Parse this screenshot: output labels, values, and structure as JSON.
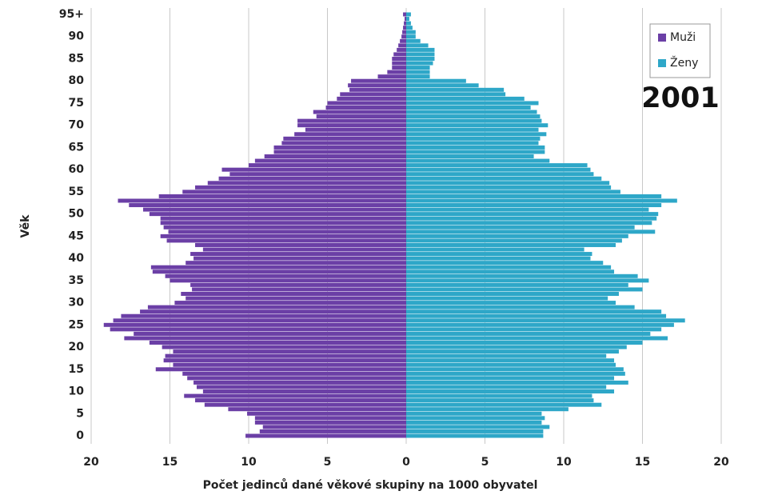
{
  "chart_data": {
    "type": "pyramid",
    "xlabel": "Počet jedinců dané věkové skupiny na 1000 obyvatel",
    "ylabel": "Věk",
    "annotation": "2001",
    "legend": "upper right",
    "grid": true,
    "xlim": [
      0,
      20
    ],
    "xticks": [
      0,
      5,
      10,
      15,
      20
    ],
    "categories": [
      "0",
      null,
      null,
      null,
      null,
      "5",
      null,
      null,
      null,
      null,
      "10",
      null,
      null,
      null,
      null,
      "15",
      null,
      null,
      null,
      null,
      "20",
      null,
      null,
      null,
      null,
      "25",
      null,
      null,
      null,
      null,
      "30",
      null,
      null,
      null,
      null,
      "35",
      null,
      null,
      null,
      null,
      "40",
      null,
      null,
      null,
      null,
      "45",
      null,
      null,
      null,
      null,
      "50",
      null,
      null,
      null,
      null,
      "55",
      null,
      null,
      null,
      null,
      "60",
      null,
      null,
      null,
      null,
      "65",
      null,
      null,
      null,
      null,
      "70",
      null,
      null,
      null,
      null,
      "75",
      null,
      null,
      null,
      null,
      "80",
      null,
      null,
      null,
      null,
      "85",
      null,
      null,
      null,
      null,
      "90",
      null,
      null,
      null,
      null,
      "95+"
    ],
    "series": [
      {
        "name": "Muži",
        "color": "#6b3fa6",
        "side": "left",
        "values": [
          10.2,
          9.3,
          9.1,
          9.6,
          9.6,
          10.1,
          11.3,
          12.8,
          13.4,
          14.1,
          12.9,
          13.3,
          13.5,
          13.9,
          14.2,
          15.9,
          14.8,
          15.4,
          15.3,
          14.8,
          15.5,
          16.3,
          17.9,
          17.3,
          18.8,
          19.2,
          18.6,
          18.1,
          16.9,
          16.4,
          14.7,
          14.0,
          14.3,
          13.6,
          13.7,
          15.0,
          15.3,
          16.1,
          16.2,
          14.0,
          13.5,
          13.7,
          12.9,
          13.4,
          15.2,
          15.6,
          15.1,
          15.4,
          15.6,
          15.6,
          16.3,
          16.7,
          17.6,
          18.3,
          15.7,
          14.2,
          13.4,
          12.6,
          11.9,
          11.2,
          11.7,
          10.0,
          9.6,
          9.0,
          8.4,
          8.4,
          7.9,
          7.8,
          7.1,
          6.4,
          6.9,
          6.9,
          5.7,
          5.9,
          5.1,
          5.0,
          4.4,
          4.2,
          3.6,
          3.7,
          3.5,
          1.8,
          1.2,
          0.9,
          0.9,
          0.9,
          0.8,
          0.6,
          0.5,
          0.4,
          0.3,
          0.25,
          0.2,
          0.15,
          0.1,
          0.2
        ]
      },
      {
        "name": "Ženy",
        "color": "#2ea7c8",
        "side": "right",
        "values": [
          8.7,
          8.7,
          9.1,
          8.6,
          8.8,
          8.6,
          10.3,
          12.4,
          11.9,
          11.8,
          13.2,
          12.7,
          14.1,
          13.2,
          13.9,
          13.8,
          13.3,
          13.2,
          12.7,
          13.5,
          14.0,
          15.0,
          16.6,
          15.5,
          16.2,
          17.0,
          17.7,
          16.5,
          16.2,
          14.5,
          13.3,
          12.8,
          13.5,
          15.0,
          14.1,
          15.4,
          14.7,
          13.2,
          13.0,
          12.5,
          11.7,
          11.8,
          11.3,
          13.3,
          13.7,
          14.1,
          15.8,
          14.5,
          15.6,
          15.9,
          16.0,
          15.4,
          16.2,
          17.2,
          16.2,
          13.6,
          13.0,
          12.9,
          12.4,
          11.9,
          11.7,
          11.5,
          9.1,
          8.1,
          8.8,
          8.8,
          8.4,
          8.5,
          8.9,
          8.4,
          9.0,
          8.6,
          8.5,
          8.3,
          7.9,
          8.4,
          7.5,
          6.3,
          6.2,
          4.6,
          3.8,
          1.5,
          1.5,
          1.5,
          1.7,
          1.8,
          1.8,
          1.8,
          1.4,
          0.9,
          0.6,
          0.6,
          0.4,
          0.3,
          0.2,
          0.3
        ]
      }
    ]
  }
}
